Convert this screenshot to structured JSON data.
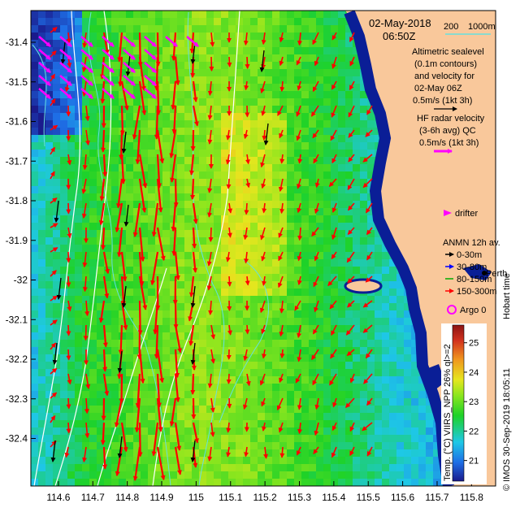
{
  "header": {
    "date": "02-May-2018",
    "time": "06:50Z",
    "scale_200": "200",
    "scale_1000": "1000m"
  },
  "legend": {
    "altimetric_lines": [
      "Altimetric sealevel",
      "(0.1m contours)",
      "and velocity for",
      "02-May 06Z",
      "0.5m/s (1kt 3h)"
    ],
    "hf_lines": [
      "HF radar velocity",
      "(3-6h avg) QC",
      "0.5m/s (1kt 3h)"
    ],
    "drifter": "drifter",
    "anmn_title": "ANMN 12h av.",
    "anmn_items": [
      {
        "label": "0-30m",
        "color": "#000000"
      },
      {
        "label": "30-80m",
        "color": "#0000ff"
      },
      {
        "label": "80-150m",
        "color": "#00aa00"
      },
      {
        "label": "150-300m",
        "color": "#ff0000"
      }
    ],
    "place": "Perth",
    "hobart_time": "Hobart time",
    "argo": "Argo 0"
  },
  "colorbar": {
    "title": "Temp. (°C) VIIRS_NPP 26% ql>=2",
    "ticks": [
      "25",
      "24",
      "23",
      "22",
      "21"
    ],
    "min": 20.3,
    "max": 25.6
  },
  "credit": "© IMOS 30-Sep-2019 18:05:11",
  "axes": {
    "x_ticks": [
      "114.6",
      "114.7",
      "114.8",
      "114.9",
      "115",
      "115.1",
      "115.2",
      "115.3",
      "115.4",
      "115.5",
      "115.6",
      "115.7",
      "115.8"
    ],
    "y_ticks": [
      "-31.4",
      "-31.5",
      "-31.6",
      "-31.7",
      "-31.8",
      "-31.9",
      "-32",
      "-32.1",
      "-32.2",
      "-32.3",
      "-32.4"
    ],
    "lon_range": [
      114.52,
      115.87
    ],
    "lat_range": [
      -32.52,
      -31.32
    ]
  },
  "colors": {
    "land": "#f9c89b",
    "coast": "#0a1e96",
    "velocity": "#ff0000",
    "hf_radar": "#ff00ff",
    "contour": "#ffffff",
    "isobath": "#66e0e0",
    "drifter_marker": "#ff00ff"
  }
}
